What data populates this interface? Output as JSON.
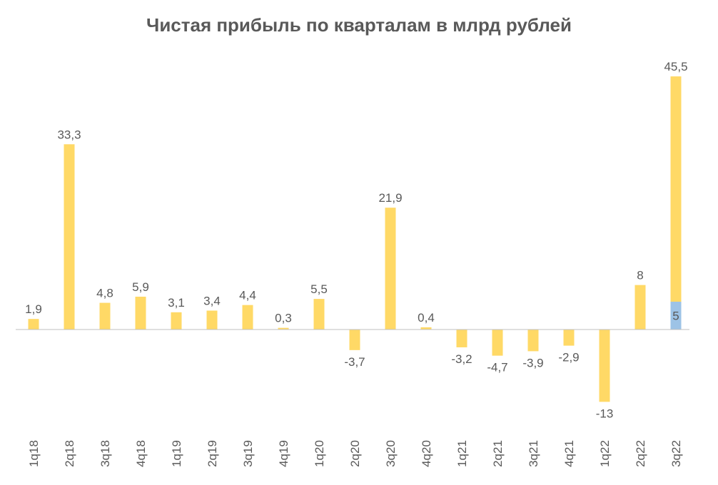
{
  "chart_data": {
    "type": "bar",
    "title": "Чистая прибыль по кварталам в млрд рублей",
    "xlabel": "",
    "ylabel": "",
    "categories": [
      "1q18",
      "2q18",
      "3q18",
      "4q18",
      "1q19",
      "2q19",
      "3q19",
      "4q19",
      "1q20",
      "2q20",
      "3q20",
      "4q20",
      "1q21",
      "2q21",
      "3q21",
      "4q21",
      "1q22",
      "2q22",
      "3q22"
    ],
    "values": [
      1.9,
      33.3,
      4.8,
      5.9,
      3.1,
      3.4,
      4.4,
      0.3,
      5.5,
      -3.7,
      21.9,
      0.4,
      -3.2,
      -4.7,
      -3.9,
      -2.9,
      -13,
      8,
      45.5
    ],
    "value_labels": [
      "1,9",
      "33,3",
      "4,8",
      "5,9",
      "3,1",
      "3,4",
      "4,4",
      "0,3",
      "5,5",
      "-3,7",
      "21,9",
      "0,4",
      "-3,2",
      "-4,7",
      "-3,9",
      "-2,9",
      "-13",
      "8",
      "45,5"
    ],
    "highlight": {
      "category": "3q22",
      "value": 5,
      "label": "5",
      "color": "#9DC3E6"
    },
    "ylim": [
      -20,
      53
    ],
    "grid": false,
    "legend": "none",
    "colors": {
      "bar": "#FFD966",
      "axis": "#BFBFBF",
      "text": "#595959"
    }
  }
}
